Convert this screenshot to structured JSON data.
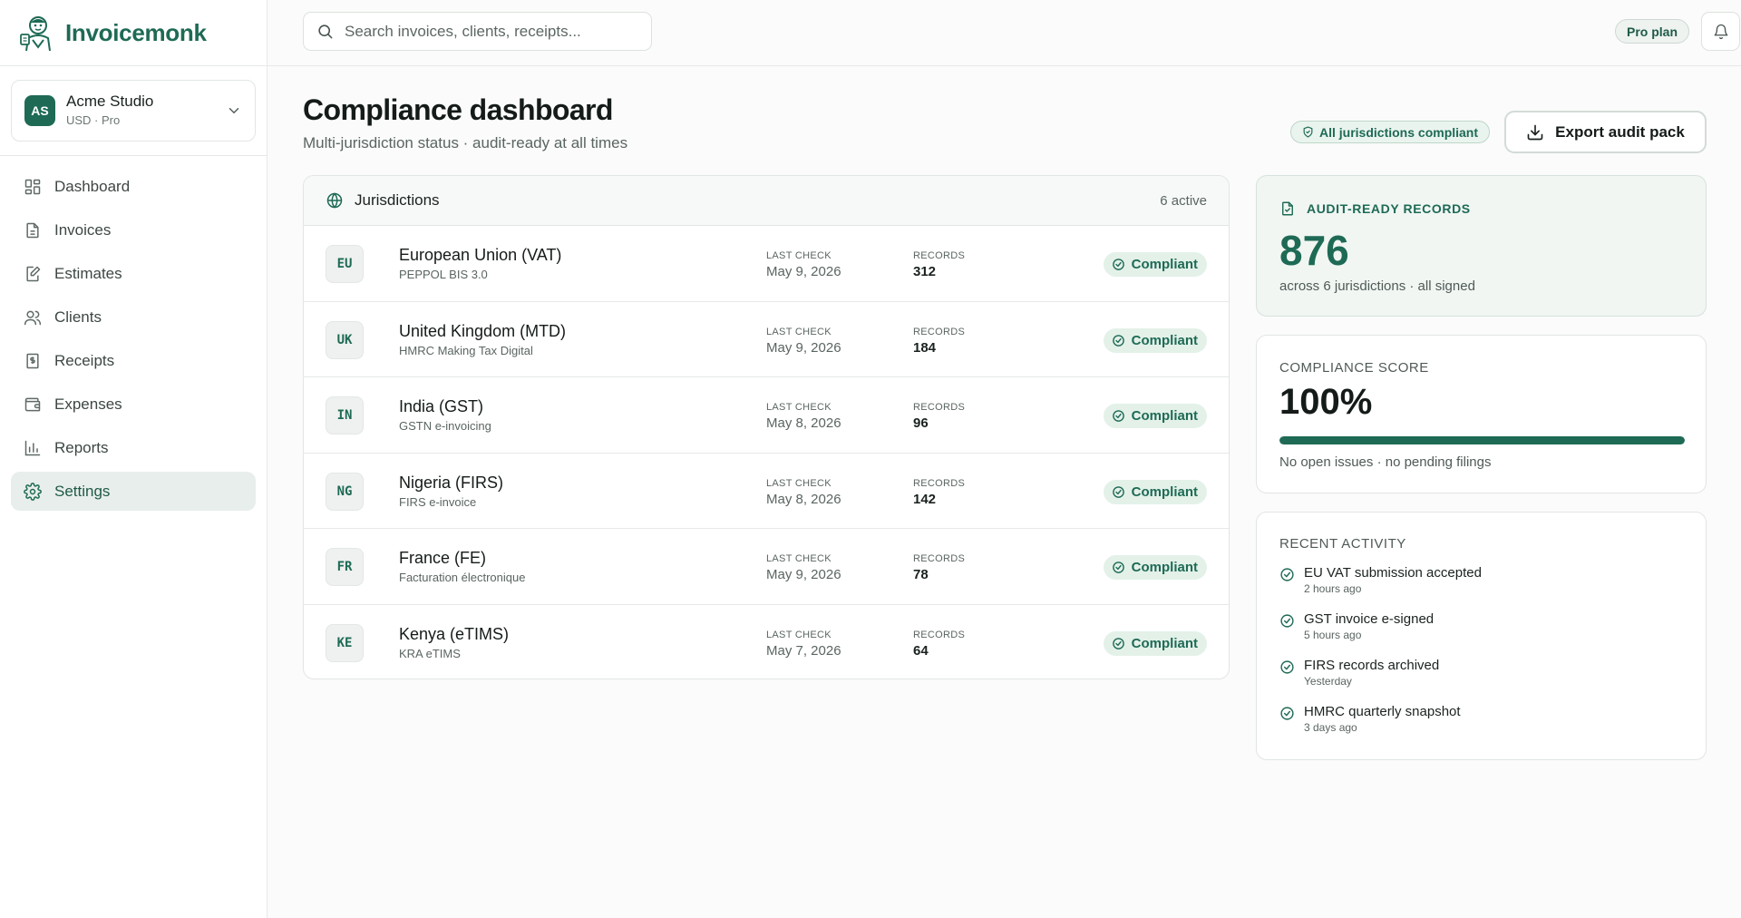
{
  "brand": {
    "name": "Invoicemonk"
  },
  "workspace": {
    "initials": "AS",
    "name": "Acme Studio",
    "subtitle": "USD · Pro"
  },
  "nav": {
    "items": [
      {
        "label": "Dashboard",
        "icon": "dashboard-icon"
      },
      {
        "label": "Invoices",
        "icon": "invoice-icon"
      },
      {
        "label": "Estimates",
        "icon": "estimate-icon"
      },
      {
        "label": "Clients",
        "icon": "clients-icon"
      },
      {
        "label": "Receipts",
        "icon": "receipt-icon"
      },
      {
        "label": "Expenses",
        "icon": "wallet-icon"
      },
      {
        "label": "Reports",
        "icon": "bar-chart-icon"
      },
      {
        "label": "Settings",
        "icon": "gear-icon"
      }
    ],
    "active": "Settings"
  },
  "topbar": {
    "search_placeholder": "Search invoices, clients, receipts...",
    "plan_label": "Pro plan"
  },
  "header": {
    "title": "Compliance dashboard",
    "subtitle": "Multi-jurisdiction status · audit-ready at all times",
    "status_pill": "All jurisdictions compliant",
    "export_label": "Export audit pack"
  },
  "jurisdictions": {
    "title": "Jurisdictions",
    "count": "6 active",
    "last_check_label": "LAST CHECK",
    "records_label": "RECORDS",
    "rows": [
      {
        "code": "EU",
        "name": "European Union (VAT)",
        "standard": "PEPPOL BIS 3.0",
        "last_check": "May 9, 2026",
        "records": "312",
        "status": "Compliant"
      },
      {
        "code": "UK",
        "name": "United Kingdom (MTD)",
        "standard": "HMRC Making Tax Digital",
        "last_check": "May 9, 2026",
        "records": "184",
        "status": "Compliant"
      },
      {
        "code": "IN",
        "name": "India (GST)",
        "standard": "GSTN e-invoicing",
        "last_check": "May 8, 2026",
        "records": "96",
        "status": "Compliant"
      },
      {
        "code": "NG",
        "name": "Nigeria (FIRS)",
        "standard": "FIRS e-invoice",
        "last_check": "May 8, 2026",
        "records": "142",
        "status": "Compliant"
      },
      {
        "code": "FR",
        "name": "France (FE)",
        "standard": "Facturation électronique",
        "last_check": "May 9, 2026",
        "records": "78",
        "status": "Compliant"
      },
      {
        "code": "KE",
        "name": "Kenya (eTIMS)",
        "standard": "KRA eTIMS",
        "last_check": "May 7, 2026",
        "records": "64",
        "status": "Compliant"
      }
    ]
  },
  "audit": {
    "label": "AUDIT-READY RECORDS",
    "value": "876",
    "subtitle": "across 6 jurisdictions · all signed"
  },
  "score": {
    "label": "COMPLIANCE SCORE",
    "value": "100%",
    "progress": 1.0,
    "subtitle": "No open issues · no pending filings"
  },
  "activity": {
    "label": "RECENT ACTIVITY",
    "items": [
      {
        "title": "EU VAT submission accepted",
        "time": "2 hours ago"
      },
      {
        "title": "GST invoice e-signed",
        "time": "5 hours ago"
      },
      {
        "title": "FIRS records archived",
        "time": "Yesterday"
      },
      {
        "title": "HMRC quarterly snapshot",
        "time": "3 days ago"
      }
    ]
  },
  "colors": {
    "brand": "#1e6a55",
    "compliant_bg": "#e3f1e9",
    "active_nav_bg": "#e8eeeb"
  }
}
